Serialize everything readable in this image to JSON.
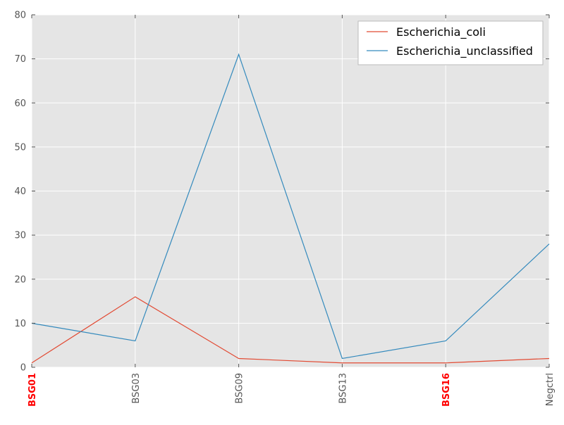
{
  "chart_data": {
    "type": "line",
    "title": "",
    "xlabel": "",
    "ylabel": "",
    "categories": [
      "BSG01",
      "BSG03",
      "BSG09",
      "BSG13",
      "BSG16",
      "Negctrl"
    ],
    "highlighted_categories": [
      "BSG01",
      "BSG16"
    ],
    "ylim": [
      0,
      80
    ],
    "yticks": [
      0,
      10,
      20,
      30,
      40,
      50,
      60,
      70,
      80
    ],
    "grid": true,
    "legend_position": "top-right",
    "series": [
      {
        "name": "Escherichia_coli",
        "color": "#E24A33",
        "values": [
          1,
          16,
          2,
          1,
          1,
          2
        ]
      },
      {
        "name": "Escherichia_unclassified",
        "color": "#348ABD",
        "values": [
          10,
          6,
          71,
          2,
          6,
          28
        ]
      }
    ]
  },
  "colors": {
    "plot_background": "#E5E5E5",
    "grid": "#FFFFFF",
    "highlight_label": "#FF0000",
    "tick_label": "#555555"
  }
}
